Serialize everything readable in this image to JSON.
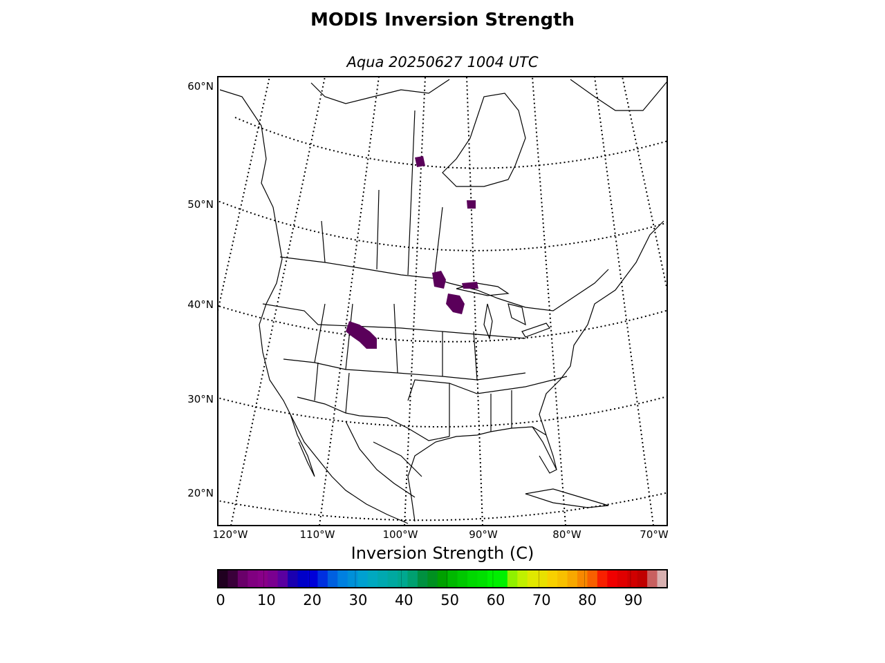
{
  "title": "MODIS Inversion Strength",
  "subtitle": "Aqua 20250627 1004 UTC",
  "map": {
    "lat_labels": [
      "60°N",
      "50°N",
      "40°N",
      "30°N",
      "20°N"
    ],
    "lon_labels": [
      "120°W",
      "110°W",
      "100°W",
      "90°W",
      "80°W",
      "70°W"
    ],
    "gridlines": "dotted",
    "inversion_color": "#5a005a"
  },
  "colorbar": {
    "label": "Inversion Strength (C)",
    "ticks": [
      "0",
      "10",
      "20",
      "30",
      "40",
      "50",
      "60",
      "70",
      "80",
      "90"
    ],
    "range": [
      0,
      98
    ],
    "colors": [
      "#200020",
      "#3a003a",
      "#6a006a",
      "#800080",
      "#880088",
      "#7a0090",
      "#5a00a0",
      "#1a00b0",
      "#0000c8",
      "#0000d8",
      "#0030e0",
      "#0060e0",
      "#0080e0",
      "#0090d8",
      "#00a0d0",
      "#00a8c0",
      "#00a8b0",
      "#00a8a0",
      "#00a890",
      "#00a070",
      "#009040",
      "#009020",
      "#00a000",
      "#00b800",
      "#00c800",
      "#00d800",
      "#00e000",
      "#00f000",
      "#00f000",
      "#90f000",
      "#c0f000",
      "#e0e800",
      "#e8e000",
      "#f8d000",
      "#f8c000",
      "#f8a800",
      "#f88800",
      "#f86000",
      "#f82000",
      "#f00000",
      "#e00000",
      "#d00000",
      "#c00000",
      "#c86060",
      "#d8b0b0"
    ]
  }
}
